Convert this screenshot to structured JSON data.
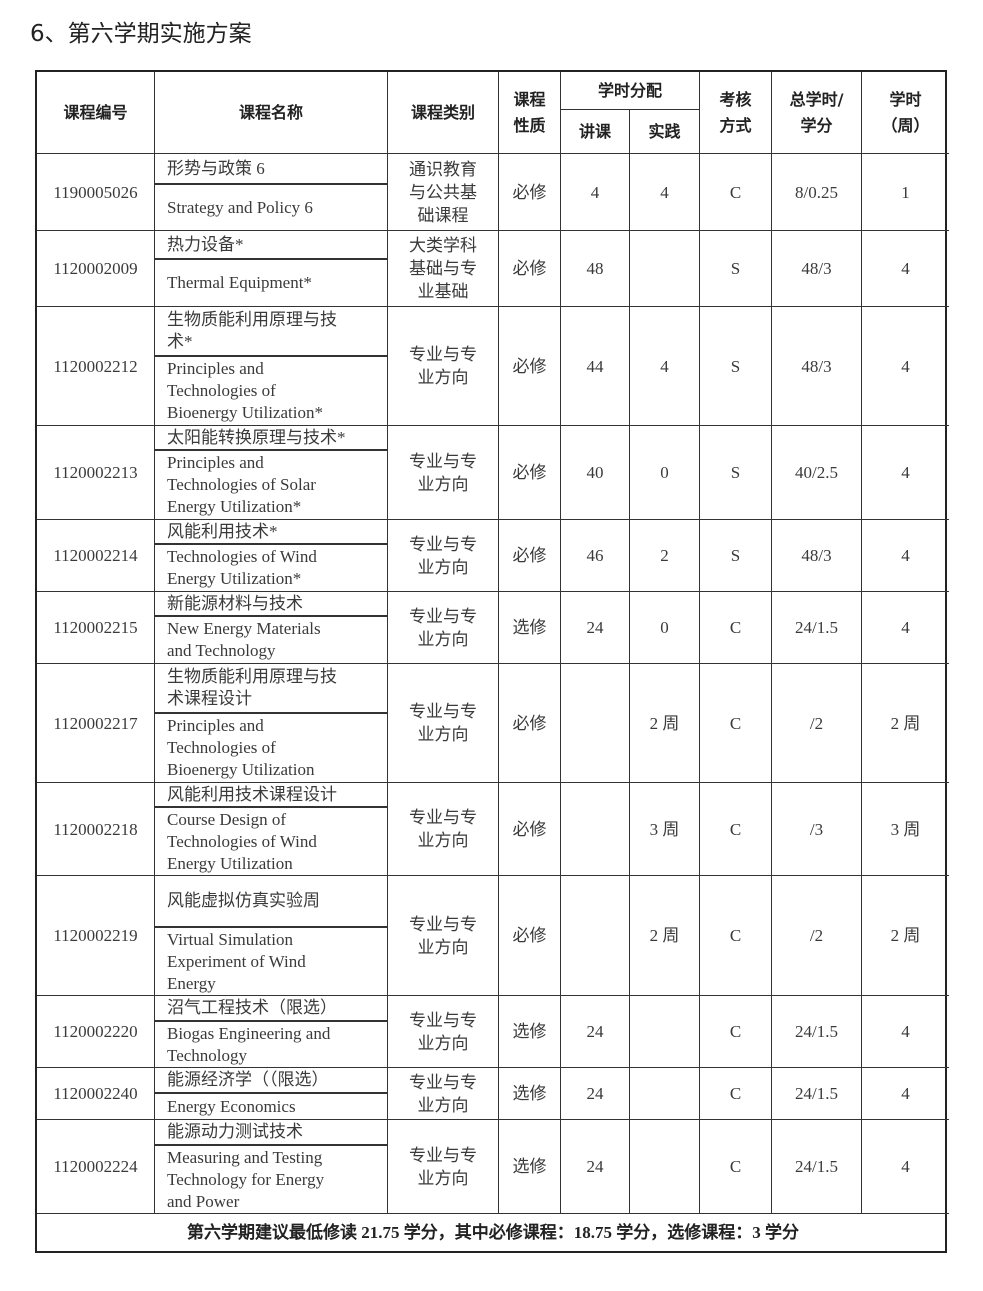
{
  "title": "6、第六学期实施方案",
  "headers": {
    "code": "课程编号",
    "name": "课程名称",
    "category": "课程类别",
    "nature": "课程\n性质",
    "hours": "学时分配",
    "lecture": "讲课",
    "practice": "实践",
    "assessment": "考核\n方式",
    "total": "总学时/\n学分",
    "weeks": "学时\n（周）"
  },
  "rows": [
    {
      "code": "1190005026",
      "name_cn": "形势与政策 6",
      "name_en": "Strategy and Policy 6",
      "category": "通识教育\n与公共基\n础课程",
      "nature": "必修",
      "lecture": "4",
      "practice": "4",
      "assessment": "C",
      "total": "8/0.25",
      "weeks": "1"
    },
    {
      "code": "1120002009",
      "name_cn": "热力设备*",
      "name_en": "Thermal Equipment*",
      "category": "大类学科\n基础与专\n业基础",
      "nature": "必修",
      "lecture": "48",
      "practice": "",
      "assessment": "S",
      "total": "48/3",
      "weeks": "4"
    },
    {
      "code": "1120002212",
      "name_cn": "生物质能利用原理与技\n术*",
      "name_en": "Principles and\nTechnologies of\nBioenergy Utilization*",
      "category": "专业与专\n业方向",
      "nature": "必修",
      "lecture": "44",
      "practice": "4",
      "assessment": "S",
      "total": "48/3",
      "weeks": "4"
    },
    {
      "code": "1120002213",
      "name_cn": "太阳能转换原理与技术*",
      "name_en": "Principles and\nTechnologies of Solar\nEnergy Utilization*",
      "category": "专业与专\n业方向",
      "nature": "必修",
      "lecture": "40",
      "practice": "0",
      "assessment": "S",
      "total": "40/2.5",
      "weeks": "4"
    },
    {
      "code": "1120002214",
      "name_cn": "风能利用技术*",
      "name_en": "Technologies of Wind\nEnergy Utilization*",
      "category": "专业与专\n业方向",
      "nature": "必修",
      "lecture": "46",
      "practice": "2",
      "assessment": "S",
      "total": "48/3",
      "weeks": "4"
    },
    {
      "code": "1120002215",
      "name_cn": "新能源材料与技术",
      "name_en": "New Energy Materials\nand Technology",
      "category": "专业与专\n业方向",
      "nature": "选修",
      "lecture": "24",
      "practice": "0",
      "assessment": "C",
      "total": "24/1.5",
      "weeks": "4"
    },
    {
      "code": "1120002217",
      "name_cn": "生物质能利用原理与技\n术课程设计",
      "name_en": "Principles and\nTechnologies of\nBioenergy Utilization",
      "category": "专业与专\n业方向",
      "nature": "必修",
      "lecture": "",
      "practice": "2 周",
      "assessment": "C",
      "total": "/2",
      "weeks": "2 周"
    },
    {
      "code": "1120002218",
      "name_cn": "风能利用技术课程设计",
      "name_en": "Course Design of\nTechnologies of Wind\nEnergy Utilization",
      "category": "专业与专\n业方向",
      "nature": "必修",
      "lecture": "",
      "practice": "3 周",
      "assessment": "C",
      "total": "/3",
      "weeks": "3 周"
    },
    {
      "code": "1120002219",
      "name_cn": "风能虚拟仿真实验周",
      "name_en": "Virtual Simulation\nExperiment of Wind\nEnergy",
      "category": "专业与专\n业方向",
      "nature": "必修",
      "lecture": "",
      "practice": "2 周",
      "assessment": "C",
      "total": "/2",
      "weeks": "2 周"
    },
    {
      "code": "1120002220",
      "name_cn": "沼气工程技术（限选）",
      "name_en": "Biogas Engineering and\nTechnology",
      "category": "专业与专\n业方向",
      "nature": "选修",
      "lecture": "24",
      "practice": "",
      "assessment": "C",
      "total": "24/1.5",
      "weeks": "4"
    },
    {
      "code": "1120002240",
      "name_cn": "能源经济学（（限选）",
      "name_en": "Energy Economics",
      "category": "专业与专\n业方向",
      "nature": "选修",
      "lecture": "24",
      "practice": "",
      "assessment": "C",
      "total": "24/1.5",
      "weeks": "4"
    },
    {
      "code": "1120002224",
      "name_cn": "能源动力测试技术",
      "name_en": "Measuring and Testing\nTechnology for Energy\nand Power",
      "category": "专业与专\n业方向",
      "nature": "选修",
      "lecture": "24",
      "practice": "",
      "assessment": "C",
      "total": "24/1.5",
      "weeks": "4"
    }
  ],
  "footer": "第六学期建议最低修读 21.75 学分，其中必修课程：18.75 学分，选修课程：3 学分"
}
